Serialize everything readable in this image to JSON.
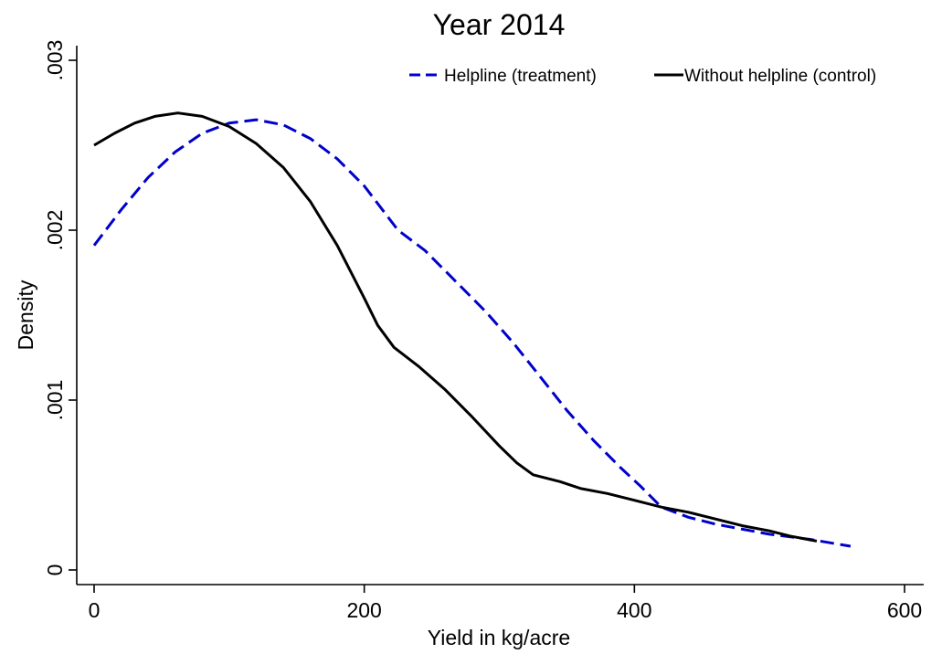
{
  "chart_data": {
    "type": "line",
    "title": "Year 2014",
    "xlabel": "Yield in kg/acre",
    "ylabel": "Density",
    "xlim": [
      0,
      600
    ],
    "ylim": [
      0,
      0.003
    ],
    "x_ticks": [
      {
        "value": 0,
        "label": "0"
      },
      {
        "value": 200,
        "label": "200"
      },
      {
        "value": 400,
        "label": "400"
      },
      {
        "value": 600,
        "label": "600"
      }
    ],
    "y_ticks": [
      {
        "value": 0,
        "label": "0"
      },
      {
        "value": 0.001,
        "label": ".001"
      },
      {
        "value": 0.002,
        "label": ".002"
      },
      {
        "value": 0.003,
        "label": ".003"
      }
    ],
    "grid": false,
    "legend_position": "top-right",
    "series": [
      {
        "name": "Helpline (treatment)",
        "color": "#0000cc",
        "dash": "dashed",
        "points": [
          [
            0,
            0.00191
          ],
          [
            20,
            0.00212
          ],
          [
            40,
            0.00231
          ],
          [
            60,
            0.00246
          ],
          [
            80,
            0.00257
          ],
          [
            100,
            0.00263
          ],
          [
            120,
            0.00265
          ],
          [
            140,
            0.00262
          ],
          [
            160,
            0.00254
          ],
          [
            180,
            0.00242
          ],
          [
            200,
            0.00226
          ],
          [
            225,
            0.002
          ],
          [
            245,
            0.00188
          ],
          [
            265,
            0.00172
          ],
          [
            290,
            0.00152
          ],
          [
            310,
            0.00134
          ],
          [
            330,
            0.00114
          ],
          [
            350,
            0.00094
          ],
          [
            370,
            0.00076
          ],
          [
            390,
            0.0006
          ],
          [
            405,
            0.00049
          ],
          [
            420,
            0.00037
          ],
          [
            440,
            0.00031
          ],
          [
            460,
            0.00027
          ],
          [
            480,
            0.00024
          ],
          [
            500,
            0.00021
          ],
          [
            530,
            0.00018
          ],
          [
            560,
            0.00014
          ]
        ]
      },
      {
        "name": "Without helpline (control)",
        "color": "#000000",
        "dash": "solid",
        "points": [
          [
            0,
            0.0025
          ],
          [
            15,
            0.00257
          ],
          [
            30,
            0.00263
          ],
          [
            45,
            0.00267
          ],
          [
            62,
            0.00269
          ],
          [
            80,
            0.00267
          ],
          [
            100,
            0.00261
          ],
          [
            120,
            0.00251
          ],
          [
            140,
            0.00237
          ],
          [
            160,
            0.00217
          ],
          [
            180,
            0.00191
          ],
          [
            200,
            0.0016
          ],
          [
            210,
            0.00144
          ],
          [
            222,
            0.00131
          ],
          [
            240,
            0.0012
          ],
          [
            260,
            0.00106
          ],
          [
            280,
            0.0009
          ],
          [
            300,
            0.00073
          ],
          [
            313,
            0.00063
          ],
          [
            325,
            0.00056
          ],
          [
            345,
            0.00052
          ],
          [
            360,
            0.00048
          ],
          [
            380,
            0.00045
          ],
          [
            400,
            0.00041
          ],
          [
            420,
            0.00037
          ],
          [
            440,
            0.00034
          ],
          [
            460,
            0.0003
          ],
          [
            480,
            0.00026
          ],
          [
            500,
            0.00023
          ],
          [
            515,
            0.0002
          ],
          [
            535,
            0.00017
          ]
        ]
      }
    ]
  }
}
